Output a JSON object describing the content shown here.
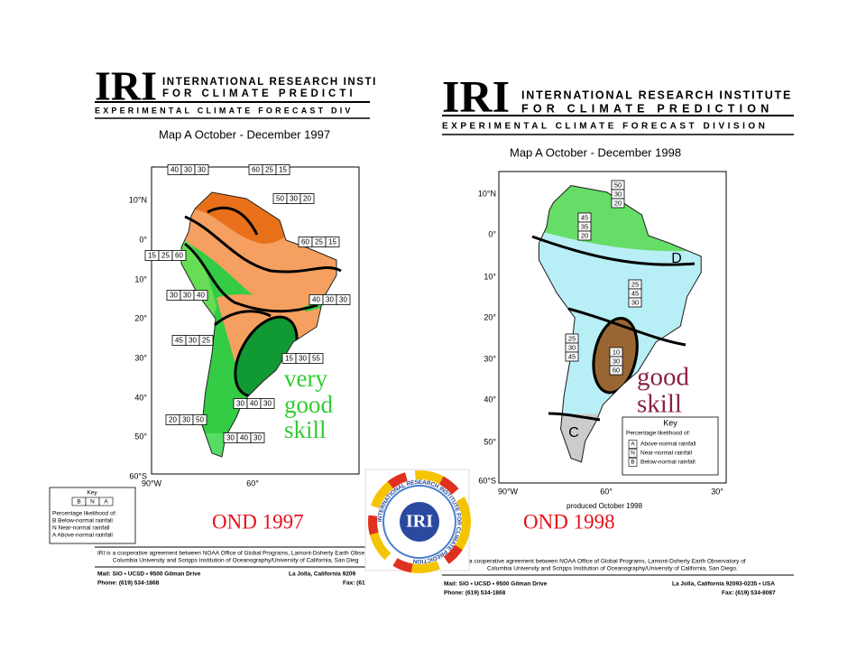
{
  "left": {
    "logo": "IRI",
    "institute": [
      "INTERNATIONAL RESEARCH INSTI",
      "FOR CLIMATE PREDICTI"
    ],
    "division": "EXPERIMENTAL CLIMATE FORECAST DIV",
    "map_title": "Map A  October - December 1997",
    "lat_labels": [
      "10°N",
      "0°",
      "10°",
      "20°",
      "30°",
      "40°",
      "50°",
      "60°S"
    ],
    "lon_labels": [
      "90°W",
      "60°"
    ],
    "boxes": [
      [
        40,
        30,
        30
      ],
      [
        60,
        25,
        15
      ],
      [
        50,
        30,
        20
      ],
      [
        60,
        25,
        15
      ],
      [
        15,
        25,
        60
      ],
      [
        30,
        30,
        40
      ],
      [
        40,
        30,
        30
      ],
      [
        45,
        30,
        25
      ],
      [
        15,
        30,
        55
      ],
      [
        30,
        40,
        30
      ],
      [
        20,
        30,
        50
      ],
      [
        30,
        40,
        30
      ]
    ],
    "skill": [
      "very",
      "good",
      "skill"
    ],
    "label": "OND 1997",
    "key": {
      "title": "Key",
      "letters": [
        "B",
        "N",
        "A"
      ],
      "heading": "Percentage likelihood of:",
      "items": [
        "B Below-normal rainfall",
        "N Near-normal rainfall",
        "A Above-normal rainfall"
      ]
    },
    "footer": [
      "IRI is a cooperative agreement between NOAA Office of Global Programs, Lamont-Doherty Earth Observ",
      "Columbia University and Scripps Institution of Oceanography/University of California, San Dieg"
    ],
    "contact": {
      "mail": "Mail: SIO • UCSD • 9500 Gilman Drive",
      "city": "La Jolla, California 9209",
      "phone": "Phone: (619) 534-1868",
      "fax": "Fax: (61"
    }
  },
  "right": {
    "logo": "IRI",
    "institute": [
      "INTERNATIONAL RESEARCH INSTITUTE",
      "FOR CLIMATE PREDICTION"
    ],
    "division": "EXPERIMENTAL CLIMATE FORECAST DIVISION",
    "map_title": "Map A  October - December  1998",
    "lat_labels": [
      "10°N",
      "0°",
      "10°",
      "20°",
      "30°",
      "40°",
      "50°",
      "60°S"
    ],
    "lon_labels": [
      "90°W",
      "60°",
      "30°"
    ],
    "boxes": [
      [
        50,
        30,
        20
      ],
      [
        45,
        35,
        20
      ],
      [
        25,
        45,
        30
      ],
      [
        25,
        30,
        45
      ],
      [
        10,
        30,
        60
      ]
    ],
    "regions": [
      "D",
      "C"
    ],
    "skill": [
      "good",
      "skill"
    ],
    "produced": "produced October 1998",
    "label": "OND 1998",
    "key": {
      "title": "Key",
      "heading": "Percentage likelihood of:",
      "items": [
        {
          "letter": "A",
          "text": "Above-normal rainfall"
        },
        {
          "letter": "N",
          "text": "Near-normal rainfall"
        },
        {
          "letter": "B",
          "text": "Below-normal rainfall"
        }
      ]
    },
    "footer": [
      "a cooperative agreement between NOAA Office of Global Programs, Lamont-Doherty Earth Observatory of",
      "Columbia University and Scripps Institution of Oceanography/University of California, San Diego."
    ],
    "contact": {
      "mail": "Mail: SIO • UCSD • 9500 Gilman Drive",
      "city": "La Jolla, California 92093-0235 • USA",
      "phone": "Phone: (619) 534-1868",
      "fax": "Fax: (619) 534-8087"
    }
  },
  "center_logo": {
    "text": "IRI",
    "ring": "INTERNATIONAL RESEARCH INSTITUTE FOR CLIMATE PREDICTION"
  }
}
